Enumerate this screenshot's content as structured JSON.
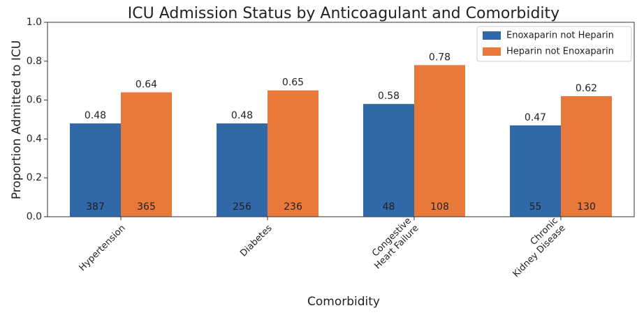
{
  "chart_data": {
    "type": "bar",
    "title": "ICU Admission Status by Anticoagulant and Comorbidity",
    "xlabel": "Comorbidity",
    "ylabel": "Proportion Admitted to ICU",
    "categories": [
      "Hypertension",
      "Diabetes",
      "Congestive\nHeart Failure",
      "Chronic\nKidney Disease"
    ],
    "series": [
      {
        "name": "Enoxaparin not Heparin",
        "color": "#3068a8",
        "values": [
          0.48,
          0.48,
          0.58,
          0.47
        ],
        "counts": [
          387,
          256,
          48,
          55
        ]
      },
      {
        "name": "Heparin not Enoxaparin",
        "color": "#e8793b",
        "values": [
          0.64,
          0.65,
          0.78,
          0.62
        ],
        "counts": [
          365,
          236,
          108,
          130
        ]
      }
    ],
    "ylim": [
      0,
      1
    ],
    "yticks": [
      {
        "value": 0,
        "label": "0.0"
      },
      0.2,
      0.4,
      0.6,
      0.8,
      {
        "value": 1,
        "label": "1.0"
      }
    ],
    "legend": "upper right"
  }
}
